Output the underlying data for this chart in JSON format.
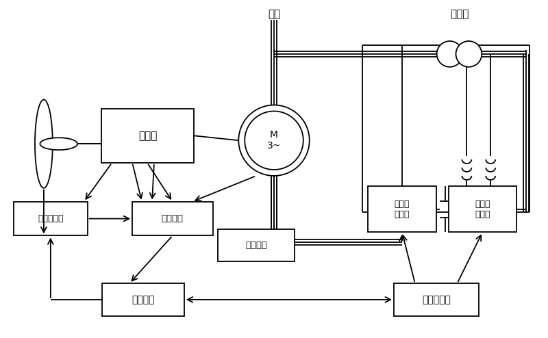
{
  "bg_color": "#ffffff",
  "line_color": "#000000",
  "text_color": "#000000",
  "figsize": [
    8.0,
    4.94
  ],
  "dpi": 100,
  "labels": {
    "grid": "电网",
    "transformer": "变压器",
    "gearbox": "齿轮箱",
    "motor": "M\n3~",
    "overvoltage": "过压保护",
    "rotor_converter": "转子侧\n变流器",
    "grid_converter": "电网侧\n变流器",
    "pitch": "变桨距机构",
    "param_detect": "参数检测",
    "main_controller": "主控制器",
    "freq_controller": "变频控制器"
  }
}
